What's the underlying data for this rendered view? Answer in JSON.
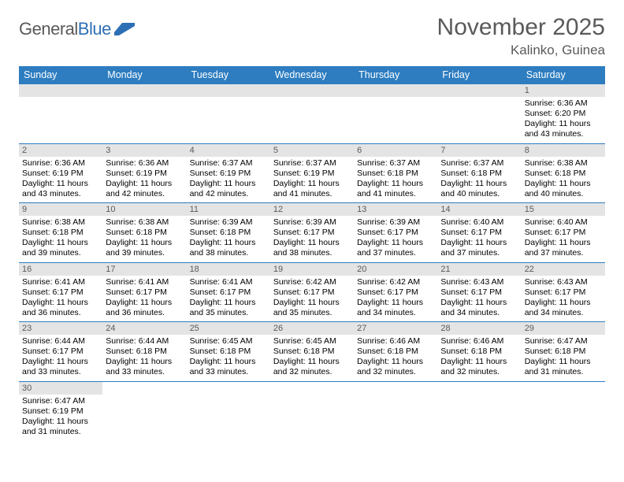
{
  "logo": {
    "word1": "General",
    "word2": "Blue"
  },
  "title": "November 2025",
  "location": "Kalinko, Guinea",
  "colors": {
    "header_bg": "#2d7dc0",
    "header_text": "#ffffff",
    "daynum_bg": "#e4e4e4",
    "daynum_text": "#5a5a5a",
    "rule": "#2d7dc0",
    "title_text": "#5a5a5a"
  },
  "day_headers": [
    "Sunday",
    "Monday",
    "Tuesday",
    "Wednesday",
    "Thursday",
    "Friday",
    "Saturday"
  ],
  "weeks": [
    [
      {
        "blank": true
      },
      {
        "blank": true
      },
      {
        "blank": true
      },
      {
        "blank": true
      },
      {
        "blank": true
      },
      {
        "blank": true
      },
      {
        "n": "1",
        "sunrise": "Sunrise: 6:36 AM",
        "sunset": "Sunset: 6:20 PM",
        "daylight": "Daylight: 11 hours and 43 minutes."
      }
    ],
    [
      {
        "n": "2",
        "sunrise": "Sunrise: 6:36 AM",
        "sunset": "Sunset: 6:19 PM",
        "daylight": "Daylight: 11 hours and 43 minutes."
      },
      {
        "n": "3",
        "sunrise": "Sunrise: 6:36 AM",
        "sunset": "Sunset: 6:19 PM",
        "daylight": "Daylight: 11 hours and 42 minutes."
      },
      {
        "n": "4",
        "sunrise": "Sunrise: 6:37 AM",
        "sunset": "Sunset: 6:19 PM",
        "daylight": "Daylight: 11 hours and 42 minutes."
      },
      {
        "n": "5",
        "sunrise": "Sunrise: 6:37 AM",
        "sunset": "Sunset: 6:19 PM",
        "daylight": "Daylight: 11 hours and 41 minutes."
      },
      {
        "n": "6",
        "sunrise": "Sunrise: 6:37 AM",
        "sunset": "Sunset: 6:18 PM",
        "daylight": "Daylight: 11 hours and 41 minutes."
      },
      {
        "n": "7",
        "sunrise": "Sunrise: 6:37 AM",
        "sunset": "Sunset: 6:18 PM",
        "daylight": "Daylight: 11 hours and 40 minutes."
      },
      {
        "n": "8",
        "sunrise": "Sunrise: 6:38 AM",
        "sunset": "Sunset: 6:18 PM",
        "daylight": "Daylight: 11 hours and 40 minutes."
      }
    ],
    [
      {
        "n": "9",
        "sunrise": "Sunrise: 6:38 AM",
        "sunset": "Sunset: 6:18 PM",
        "daylight": "Daylight: 11 hours and 39 minutes."
      },
      {
        "n": "10",
        "sunrise": "Sunrise: 6:38 AM",
        "sunset": "Sunset: 6:18 PM",
        "daylight": "Daylight: 11 hours and 39 minutes."
      },
      {
        "n": "11",
        "sunrise": "Sunrise: 6:39 AM",
        "sunset": "Sunset: 6:18 PM",
        "daylight": "Daylight: 11 hours and 38 minutes."
      },
      {
        "n": "12",
        "sunrise": "Sunrise: 6:39 AM",
        "sunset": "Sunset: 6:17 PM",
        "daylight": "Daylight: 11 hours and 38 minutes."
      },
      {
        "n": "13",
        "sunrise": "Sunrise: 6:39 AM",
        "sunset": "Sunset: 6:17 PM",
        "daylight": "Daylight: 11 hours and 37 minutes."
      },
      {
        "n": "14",
        "sunrise": "Sunrise: 6:40 AM",
        "sunset": "Sunset: 6:17 PM",
        "daylight": "Daylight: 11 hours and 37 minutes."
      },
      {
        "n": "15",
        "sunrise": "Sunrise: 6:40 AM",
        "sunset": "Sunset: 6:17 PM",
        "daylight": "Daylight: 11 hours and 37 minutes."
      }
    ],
    [
      {
        "n": "16",
        "sunrise": "Sunrise: 6:41 AM",
        "sunset": "Sunset: 6:17 PM",
        "daylight": "Daylight: 11 hours and 36 minutes."
      },
      {
        "n": "17",
        "sunrise": "Sunrise: 6:41 AM",
        "sunset": "Sunset: 6:17 PM",
        "daylight": "Daylight: 11 hours and 36 minutes."
      },
      {
        "n": "18",
        "sunrise": "Sunrise: 6:41 AM",
        "sunset": "Sunset: 6:17 PM",
        "daylight": "Daylight: 11 hours and 35 minutes."
      },
      {
        "n": "19",
        "sunrise": "Sunrise: 6:42 AM",
        "sunset": "Sunset: 6:17 PM",
        "daylight": "Daylight: 11 hours and 35 minutes."
      },
      {
        "n": "20",
        "sunrise": "Sunrise: 6:42 AM",
        "sunset": "Sunset: 6:17 PM",
        "daylight": "Daylight: 11 hours and 34 minutes."
      },
      {
        "n": "21",
        "sunrise": "Sunrise: 6:43 AM",
        "sunset": "Sunset: 6:17 PM",
        "daylight": "Daylight: 11 hours and 34 minutes."
      },
      {
        "n": "22",
        "sunrise": "Sunrise: 6:43 AM",
        "sunset": "Sunset: 6:17 PM",
        "daylight": "Daylight: 11 hours and 34 minutes."
      }
    ],
    [
      {
        "n": "23",
        "sunrise": "Sunrise: 6:44 AM",
        "sunset": "Sunset: 6:17 PM",
        "daylight": "Daylight: 11 hours and 33 minutes."
      },
      {
        "n": "24",
        "sunrise": "Sunrise: 6:44 AM",
        "sunset": "Sunset: 6:18 PM",
        "daylight": "Daylight: 11 hours and 33 minutes."
      },
      {
        "n": "25",
        "sunrise": "Sunrise: 6:45 AM",
        "sunset": "Sunset: 6:18 PM",
        "daylight": "Daylight: 11 hours and 33 minutes."
      },
      {
        "n": "26",
        "sunrise": "Sunrise: 6:45 AM",
        "sunset": "Sunset: 6:18 PM",
        "daylight": "Daylight: 11 hours and 32 minutes."
      },
      {
        "n": "27",
        "sunrise": "Sunrise: 6:46 AM",
        "sunset": "Sunset: 6:18 PM",
        "daylight": "Daylight: 11 hours and 32 minutes."
      },
      {
        "n": "28",
        "sunrise": "Sunrise: 6:46 AM",
        "sunset": "Sunset: 6:18 PM",
        "daylight": "Daylight: 11 hours and 32 minutes."
      },
      {
        "n": "29",
        "sunrise": "Sunrise: 6:47 AM",
        "sunset": "Sunset: 6:18 PM",
        "daylight": "Daylight: 11 hours and 31 minutes."
      }
    ],
    [
      {
        "n": "30",
        "sunrise": "Sunrise: 6:47 AM",
        "sunset": "Sunset: 6:19 PM",
        "daylight": "Daylight: 11 hours and 31 minutes."
      },
      {
        "blank": true
      },
      {
        "blank": true
      },
      {
        "blank": true
      },
      {
        "blank": true
      },
      {
        "blank": true
      },
      {
        "blank": true
      }
    ]
  ]
}
